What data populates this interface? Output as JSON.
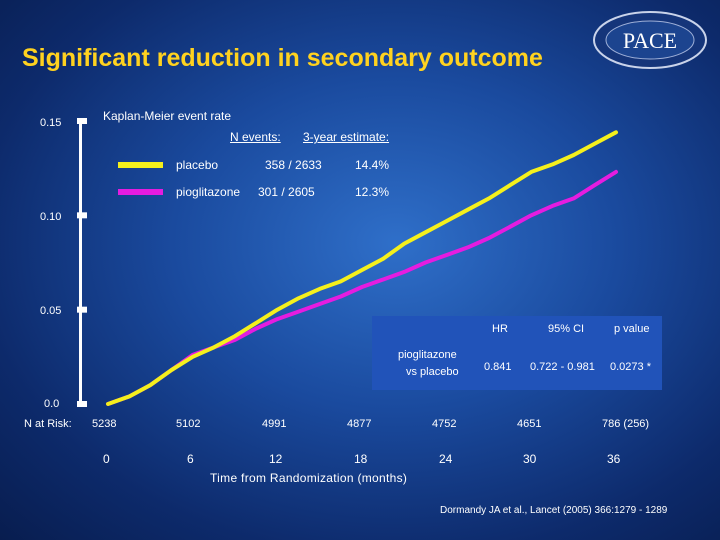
{
  "slide": {
    "title": "Significant reduction in secondary outcome",
    "logo_text": "PACE",
    "citation": "Dormandy JA et al., Lancet (2005) 366:1279 - 1289"
  },
  "colors": {
    "placebo": "#f5f01c",
    "pioglitazone": "#e51ce0",
    "title": "#ffd21f",
    "panel": "#2153b9"
  },
  "chart_data": {
    "type": "line",
    "title": "Kaplan-Meier event rate",
    "xlabel": "Time from Randomization (months)",
    "ylabel": "",
    "xlim": [
      0,
      36
    ],
    "ylim": [
      0,
      0.15
    ],
    "x_ticks": [
      "0",
      "6",
      "12",
      "18",
      "24",
      "30",
      "36"
    ],
    "y_ticks": [
      "0.0",
      "0.05",
      "0.10",
      "0.15"
    ],
    "legend_headers": {
      "events": "N events:",
      "estimate": "3-year estimate:"
    },
    "series": [
      {
        "name": "placebo",
        "events": "358 / 2633",
        "estimate": "14.4%",
        "x": [
          0,
          1.5,
          3,
          4.5,
          6,
          7.5,
          9,
          10.5,
          12,
          13.5,
          15,
          16.5,
          18,
          19.5,
          21,
          22.5,
          24,
          25.5,
          27,
          28.5,
          30,
          31.5,
          33,
          34.5,
          36
        ],
        "values": [
          0.0,
          0.004,
          0.01,
          0.018,
          0.025,
          0.03,
          0.036,
          0.043,
          0.05,
          0.056,
          0.061,
          0.065,
          0.071,
          0.077,
          0.085,
          0.091,
          0.097,
          0.103,
          0.109,
          0.116,
          0.123,
          0.127,
          0.132,
          0.138,
          0.144
        ]
      },
      {
        "name": "pioglitazone",
        "events": "301 / 2605",
        "estimate": "12.3%",
        "x": [
          0,
          1.5,
          3,
          4.5,
          6,
          7.5,
          9,
          10.5,
          12,
          13.5,
          15,
          16.5,
          18,
          19.5,
          21,
          22.5,
          24,
          25.5,
          27,
          28.5,
          30,
          31.5,
          33,
          34.5,
          36
        ],
        "values": [
          0.0,
          0.004,
          0.01,
          0.018,
          0.026,
          0.03,
          0.034,
          0.04,
          0.045,
          0.049,
          0.053,
          0.057,
          0.062,
          0.066,
          0.07,
          0.075,
          0.079,
          0.083,
          0.088,
          0.094,
          0.1,
          0.105,
          0.109,
          0.116,
          0.123
        ]
      }
    ],
    "hazard_table": {
      "headers": [
        "HR",
        "95% CI",
        "p value"
      ],
      "row_label": [
        "pioglitazone",
        "vs placebo"
      ],
      "values": [
        "0.841",
        "0.722 - 0.981",
        "0.0273 *"
      ]
    },
    "at_risk": {
      "label": "N at Risk:",
      "counts": [
        "5238",
        "5102",
        "4991",
        "4877",
        "4752",
        "4651",
        "786  (256)"
      ]
    }
  }
}
